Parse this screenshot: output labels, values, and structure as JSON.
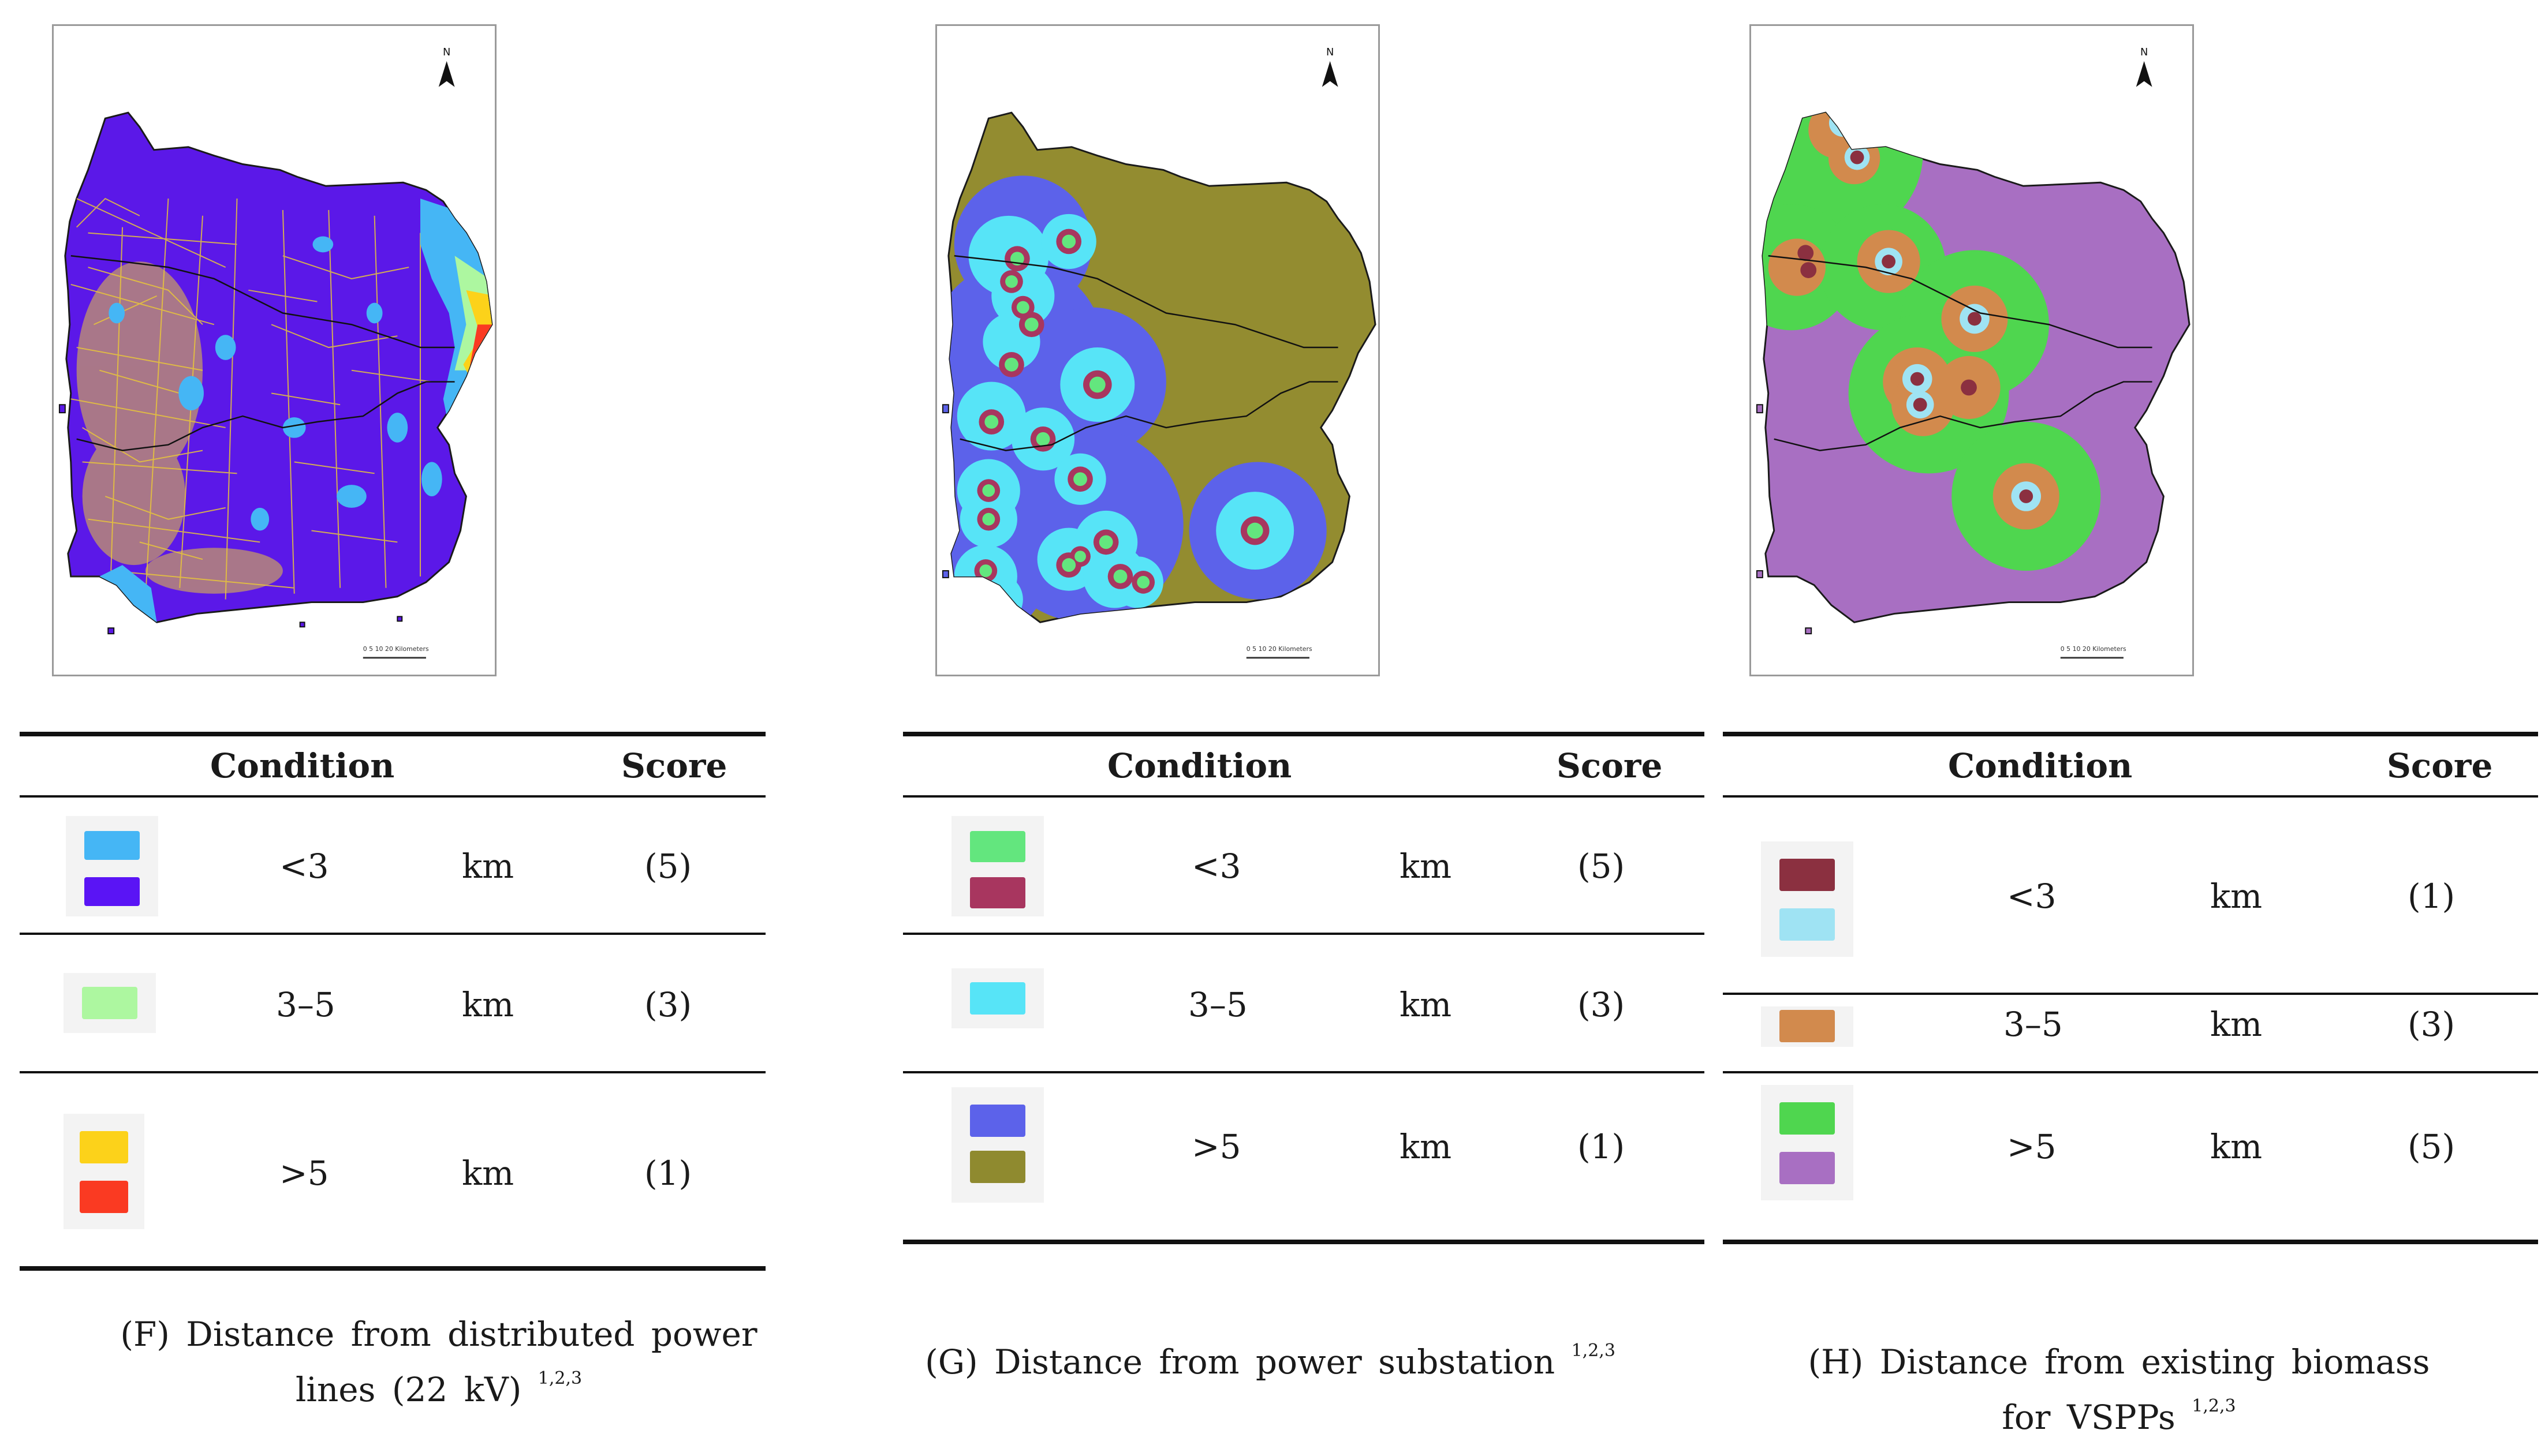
{
  "panels": [
    {
      "id": "F",
      "header": {
        "condition": "Condition",
        "score": "Score"
      },
      "rows": [
        {
          "condition": "<3",
          "unit": "km",
          "score": "(5)",
          "swatches": [
            "#45b6f5",
            "#5a14f5"
          ]
        },
        {
          "condition": "3–5",
          "unit": "km",
          "score": "(3)",
          "swatches": [
            "#adf7a0"
          ]
        },
        {
          "condition": ">5",
          "unit": "km",
          "score": "(1)",
          "swatches": [
            "#fcd21a",
            "#fa3a22"
          ]
        }
      ],
      "caption_line1": "(F) Distance from distributed power",
      "caption_line2": "lines (22 kV)",
      "caption_sup": "1,2,3",
      "north_label": "N",
      "scale_label": "0   5  10        20 Kilometers",
      "colors": {
        "base": "#5b18e8",
        "near": "#45b6f5",
        "mid": "#adf7a0",
        "far1": "#fcd21a",
        "far2": "#fa3a22",
        "lines": "#e9c63a"
      }
    },
    {
      "id": "G",
      "header": {
        "condition": "Condition",
        "score": "Score"
      },
      "rows": [
        {
          "condition": "<3",
          "unit": "km",
          "score": "(5)",
          "swatches": [
            "#63e67e",
            "#a8365f"
          ]
        },
        {
          "condition": "3–5",
          "unit": "km",
          "score": "(3)",
          "swatches": [
            "#57e4f7"
          ]
        },
        {
          "condition": ">5",
          "unit": "km",
          "score": "(1)",
          "swatches": [
            "#5c62ea",
            "#8f8a2f"
          ]
        }
      ],
      "caption_line1": "(G) Distance from power substation",
      "caption_line2": "",
      "caption_sup": "1,2,3",
      "north_label": "N",
      "scale_label": "0   5  10        20 Kilometers",
      "colors": {
        "base": "#938c30",
        "ring": "#5c62ea",
        "inner": "#57e4f7",
        "point": "#a8365f",
        "center": "#63e67e"
      }
    },
    {
      "id": "H",
      "header": {
        "condition": "Condition",
        "score": "Score"
      },
      "rows": [
        {
          "condition": "<3",
          "unit": "km",
          "score": "(1)",
          "swatches": [
            "#8b3040",
            "#9fe3f3"
          ]
        },
        {
          "condition": "3–5",
          "unit": "km",
          "score": "(3)",
          "swatches": [
            "#d28a4d"
          ]
        },
        {
          "condition": ">5",
          "unit": "km",
          "score": "(5)",
          "swatches": [
            "#4fd64f",
            "#a86fc2"
          ]
        }
      ],
      "caption_line1": "(H) Distance from existing biomass",
      "caption_line2": "for VSPPs",
      "caption_sup": "1,2,3",
      "north_label": "N",
      "scale_label": "0   5  10        20 Kilometers",
      "colors": {
        "base": "#a86fc2",
        "ring": "#4fd64f",
        "mid": "#d28a4d",
        "inner": "#9fe3f3",
        "center": "#8b3040"
      }
    }
  ]
}
